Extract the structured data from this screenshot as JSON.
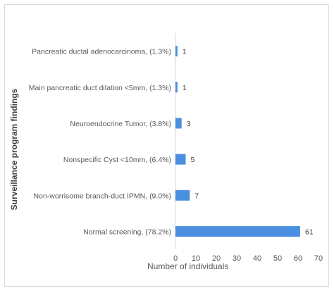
{
  "chart_data": {
    "type": "bar",
    "orientation": "horizontal",
    "categories": [
      "Pancreatic ductal adenocarcinoma, (1.3%)",
      "Main pancreatic duct dilation <5mm, (1.3%)",
      "Neuroendocrine Tumor, (3.8%)",
      "Nonspecific Cyst <10mm, (6.4%)",
      "Non-worrisome branch-duct IPMN, (9.0%)",
      "Normal screening, (78.2%)"
    ],
    "values": [
      1,
      1,
      3,
      5,
      7,
      61
    ],
    "value_labels": [
      "1",
      "1",
      "3",
      "5",
      "7",
      "61"
    ],
    "xlabel": "Number of individuals",
    "ylabel": "Surveillance program findings",
    "xlim": [
      0,
      70
    ],
    "xticks": [
      "0",
      "10",
      "20",
      "30",
      "40",
      "50",
      "60",
      "70"
    ],
    "grid": false,
    "legend": "none",
    "colors": {
      "bar": "#4a8fe0",
      "text": "#595959",
      "axis": "#d9d9d9"
    }
  }
}
